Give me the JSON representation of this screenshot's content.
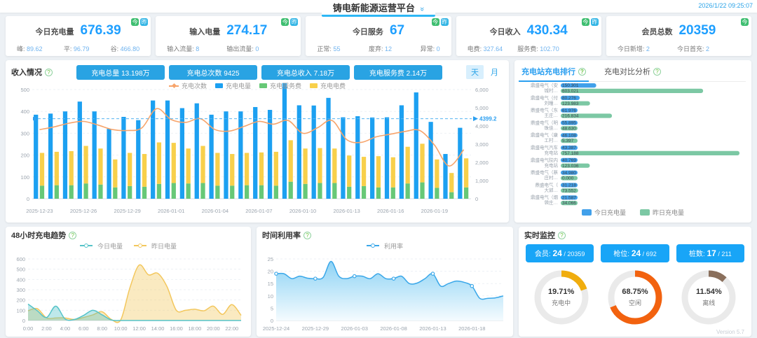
{
  "colors": {
    "accent_blue": "#1E9FFF",
    "button_blue": "#29a3e3",
    "monitor_button_blue": "#18a5f7",
    "badge_green": "#3fbe71",
    "badge_blue": "#33b5e5",
    "tab_active_blue": "#2b9ff0"
  },
  "header": {
    "title": "铸电新能源运营平台",
    "timestamp": "2026/1/22 09:25:07"
  },
  "badges": {
    "today": "今",
    "yesterday": "昨"
  },
  "kpi_cards": [
    {
      "label": "今日充电量",
      "value": "676.39",
      "stats": [
        {
          "k": "峰",
          "v": "89.62"
        },
        {
          "k": "平",
          "v": "96.79"
        },
        {
          "k": "谷",
          "v": "466.80"
        }
      ]
    },
    {
      "label": "输入电量",
      "value": "274.17",
      "stats": [
        {
          "k": "输入流量",
          "v": "8"
        },
        {
          "k": "输出流量",
          "v": "0"
        }
      ]
    },
    {
      "label": "今日服务",
      "value": "67",
      "stats": [
        {
          "k": "正常",
          "v": "55"
        },
        {
          "k": "废弃",
          "v": "12"
        },
        {
          "k": "异常",
          "v": "0"
        }
      ]
    },
    {
      "label": "今日收入",
      "value": "430.34",
      "stats": [
        {
          "k": "电费",
          "v": "327.64"
        },
        {
          "k": "服务费",
          "v": "102.70"
        }
      ]
    },
    {
      "label": "会员总数",
      "value": "20359",
      "stats": [
        {
          "k": "今日新增",
          "v": "2"
        },
        {
          "k": "今日首充",
          "v": "2"
        }
      ]
    }
  ],
  "income_panel": {
    "title": "收入情况",
    "stat_buttons": [
      "充电总量 13.198万",
      "充电总次数 9425",
      "充电总收入 7.18万",
      "充电服务费 2.14万"
    ],
    "day": "天",
    "month": "月"
  },
  "ranking_panel": {
    "tab_active": "充电站充电排行",
    "tab_other": "充电对比分析"
  },
  "trend_panel": {
    "title": "48小时充电趋势"
  },
  "util_panel": {
    "title": "时间利用率"
  },
  "monitor_panel": {
    "title": "实时监控",
    "buttons": [
      {
        "label": "会员",
        "value": "24",
        "total": "20359"
      },
      {
        "label": "枪位",
        "value": "24",
        "total": "692"
      },
      {
        "label": "桩数",
        "value": "17",
        "total": "211"
      }
    ],
    "version": "Version 5.7"
  },
  "chart_data": [
    {
      "id": "income",
      "type": "bar",
      "x": [
        "2025-12-23",
        "2025-12-24",
        "2025-12-25",
        "2025-12-26",
        "2025-12-27",
        "2025-12-28",
        "2025-12-29",
        "2025-12-30",
        "2025-12-31",
        "2026-01-01",
        "2026-01-02",
        "2026-01-03",
        "2026-01-04",
        "2026-01-05",
        "2026-01-06",
        "2026-01-07",
        "2026-01-08",
        "2026-01-09",
        "2026-01-10",
        "2026-01-11",
        "2026-01-12",
        "2026-01-13",
        "2026-01-14",
        "2026-01-15",
        "2026-01-16",
        "2026-01-17",
        "2026-01-18",
        "2026-01-19",
        "2026-01-20",
        "2026-01-21"
      ],
      "x_tick_every": 3,
      "left_axis": {
        "min": 0,
        "max": 500,
        "step": 100
      },
      "right_axis": {
        "min": 0,
        "max": 6000,
        "step": 1000
      },
      "markline": {
        "value": 4399.2,
        "label": "4399.2"
      },
      "series": [
        {
          "name": "充电电量",
          "kind": "bar",
          "axis": "left",
          "color": "#1ca0f1",
          "values": [
            385,
            390,
            400,
            445,
            400,
            320,
            375,
            360,
            450,
            450,
            415,
            437,
            385,
            400,
            400,
            420,
            407,
            530,
            428,
            427,
            462,
            373,
            378,
            372,
            373,
            428,
            487,
            352,
            205,
            325
          ]
        },
        {
          "name": "充电服务费",
          "kind": "bar-stack",
          "axis": "left",
          "color": "#67c877",
          "values": [
            60,
            62,
            62,
            70,
            65,
            52,
            58,
            55,
            68,
            72,
            70,
            72,
            60,
            60,
            62,
            62,
            60,
            78,
            68,
            72,
            72,
            55,
            58,
            52,
            52,
            70,
            75,
            50,
            30,
            52
          ]
        },
        {
          "name": "充电电费",
          "kind": "bar-stack",
          "axis": "left",
          "color": "#f8d04b",
          "values": [
            150,
            153,
            156,
            172,
            165,
            128,
            152,
            150,
            190,
            184,
            160,
            170,
            150,
            145,
            148,
            150,
            155,
            190,
            162,
            160,
            158,
            143,
            134,
            143,
            138,
            168,
            177,
            130,
            88,
            133
          ]
        },
        {
          "name": "充电次数",
          "kind": "line",
          "axis": "right",
          "color": "#f7a46b",
          "values": [
            3800,
            3950,
            4150,
            4250,
            4050,
            3800,
            3750,
            3900,
            4950,
            4350,
            4200,
            4400,
            3800,
            3720,
            3980,
            4250,
            4100,
            4300,
            3600,
            3900,
            4300,
            3250,
            3100,
            3400,
            3550,
            3700,
            3750,
            2950,
            1800,
            2700
          ]
        }
      ]
    },
    {
      "id": "station_ranking",
      "type": "bar",
      "orientation": "horizontal",
      "max": 760,
      "colors": {
        "today": "#41a0ea",
        "yesterday": "#7cc8a4"
      },
      "legend": [
        "今日充电量",
        "昨日充电量"
      ],
      "stations": [
        {
          "name": "鼎盛电气（安城村…",
          "lines": [
            "鼎盛电气（安",
            "城村…"
          ],
          "today": 150.301,
          "yesterday": 603.021
        },
        {
          "name": "鼎盛电气（付刘疃…",
          "lines": [
            "鼎盛电气（付",
            "刘疃…"
          ],
          "today": 80.276,
          "yesterday": 123.983
        },
        {
          "name": "鼎盛电气（东王庄…",
          "lines": [
            "鼎盛电气（东",
            "王庄…"
          ],
          "today": 61.976,
          "yesterday": 216.834
        },
        {
          "name": "鼎盛电气（明珠佳…",
          "lines": [
            "鼎盛电气（明",
            "珠佳…"
          ],
          "today": 55.895,
          "yesterday": 48.63
        },
        {
          "name": "鼎盛电气（康工村…",
          "lines": [
            "鼎盛电气（康",
            "工村…"
          ],
          "today": 46.108,
          "yesterday": 5.397
        },
        {
          "name": "鼎盛电气汽车充电站",
          "lines": [
            "鼎盛电气汽车",
            "充电站"
          ],
          "today": 43.387,
          "yesterday": 757.188
        },
        {
          "name": "鼎盛电气院内充电站",
          "lines": [
            "鼎盛电气院内",
            "充电站"
          ],
          "today": 40.769,
          "yesterday": 123.036
        },
        {
          "name": "鼎盛电气（蔡庄村…",
          "lines": [
            "鼎盛电气（蔡",
            "庄村…"
          ],
          "today": 34.98,
          "yesterday": 0.0
        },
        {
          "name": "鼎盛电气（大郭…",
          "lines": [
            "鼎盛电气（",
            "大郭…"
          ],
          "today": 31.218,
          "yesterday": 73.552
        },
        {
          "name": "鼎盛电气（烟袋庄…",
          "lines": [
            "鼎盛电气（烟",
            "袋庄…"
          ],
          "today": 21.587,
          "yesterday": 34.066
        }
      ]
    },
    {
      "id": "trend48",
      "type": "area",
      "x": [
        "0:00",
        "1:00",
        "2:00",
        "3:00",
        "4:00",
        "5:00",
        "6:00",
        "7:00",
        "8:00",
        "9:00",
        "10:00",
        "11:00",
        "12:00",
        "13:00",
        "14:00",
        "15:00",
        "16:00",
        "17:00",
        "18:00",
        "19:00",
        "20:00",
        "21:00",
        "22:00",
        "23:00"
      ],
      "x_tick_every": 2,
      "ylim": [
        0,
        600
      ],
      "ystep": 100,
      "series": [
        {
          "name": "今日电量",
          "color": "#55c3c8",
          "values": [
            160,
            95,
            30,
            140,
            15,
            10,
            50,
            100,
            55,
            5,
            0,
            0,
            0,
            0,
            0,
            0,
            0,
            0,
            0,
            0,
            0,
            0,
            0,
            0
          ]
        },
        {
          "name": "昨日电量",
          "color": "#f3c75d",
          "values": [
            95,
            115,
            25,
            25,
            25,
            10,
            30,
            55,
            85,
            10,
            5,
            320,
            540,
            445,
            460,
            330,
            100,
            100,
            110,
            95,
            140,
            60,
            155,
            50
          ]
        }
      ]
    },
    {
      "id": "utilization",
      "type": "area",
      "x": [
        "2025-12-24",
        "2025-12-25",
        "2025-12-26",
        "2025-12-27",
        "2025-12-28",
        "2025-12-29",
        "2025-12-30",
        "2025-12-31",
        "2026-01-01",
        "2026-01-02",
        "2026-01-03",
        "2026-01-04",
        "2026-01-05",
        "2026-01-06",
        "2026-01-07",
        "2026-01-08",
        "2026-01-09",
        "2026-01-10",
        "2026-01-11",
        "2026-01-12",
        "2026-01-13",
        "2026-01-14",
        "2026-01-15",
        "2026-01-16",
        "2026-01-17",
        "2026-01-18",
        "2026-01-19",
        "2026-01-20",
        "2026-01-21",
        "2026-01-22"
      ],
      "x_tick_every": 5,
      "ylim": [
        0,
        25
      ],
      "ystep": 5,
      "series": [
        {
          "name": "利用率",
          "color": "#39a7e9",
          "values": [
            19,
            19,
            17,
            18,
            17.2,
            17,
            17.5,
            24,
            18,
            17,
            18,
            18,
            17,
            19,
            17,
            17,
            18,
            15,
            15.2,
            17,
            19,
            14,
            15,
            16,
            15.5,
            14,
            9,
            9,
            9.2,
            10
          ]
        }
      ]
    },
    {
      "id": "monitor_donuts",
      "type": "pie",
      "items": [
        {
          "label": "充电中",
          "percent": "19.71%",
          "value": 19.71,
          "color": "#f0ad0e"
        },
        {
          "label": "空闲",
          "percent": "68.75%",
          "value": 68.75,
          "color": "#f2620f"
        },
        {
          "label": "离线",
          "percent": "11.54%",
          "value": 11.54,
          "color": "#8a6f5c"
        }
      ]
    }
  ]
}
